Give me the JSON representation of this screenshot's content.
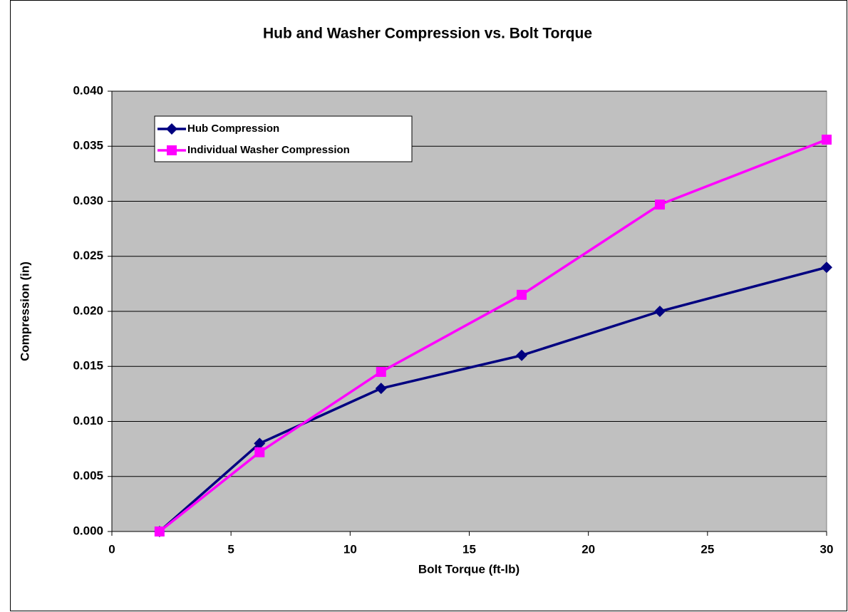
{
  "chart_data": {
    "type": "line",
    "title": "Hub and Washer Compression vs. Bolt Torque",
    "xlabel": "Bolt Torque (ft-lb)",
    "ylabel": "Compression (in)",
    "x": [
      2,
      6.2,
      11.3,
      17.2,
      23,
      30
    ],
    "series": [
      {
        "name": "Hub Compression",
        "color": "#000080",
        "marker": "diamond",
        "values": [
          0,
          0.008,
          0.013,
          0.016,
          0.02,
          0.024
        ]
      },
      {
        "name": "Individual Washer Compression",
        "color": "#ff00ff",
        "marker": "square",
        "values": [
          0,
          0.0072,
          0.0145,
          0.0215,
          0.0297,
          0.0356
        ]
      }
    ],
    "xlim": [
      0,
      30
    ],
    "xticks": [
      0,
      5,
      10,
      15,
      20,
      25,
      30
    ],
    "ylim": [
      0,
      0.04
    ],
    "yticks": [
      {
        "value": 0,
        "label": "0.000"
      },
      {
        "value": 0.005,
        "label": "0.005"
      },
      {
        "value": 0.01,
        "label": "0.010"
      },
      {
        "value": 0.015,
        "label": "0.015"
      },
      {
        "value": 0.02,
        "label": "0.020"
      },
      {
        "value": 0.025,
        "label": "0.025"
      },
      {
        "value": 0.03,
        "label": "0.030"
      },
      {
        "value": 0.035,
        "label": "0.035"
      },
      {
        "value": 0.04,
        "label": "0.040"
      }
    ],
    "grid": true,
    "plot_background": "#c0c0c0",
    "legend": "upper left"
  }
}
